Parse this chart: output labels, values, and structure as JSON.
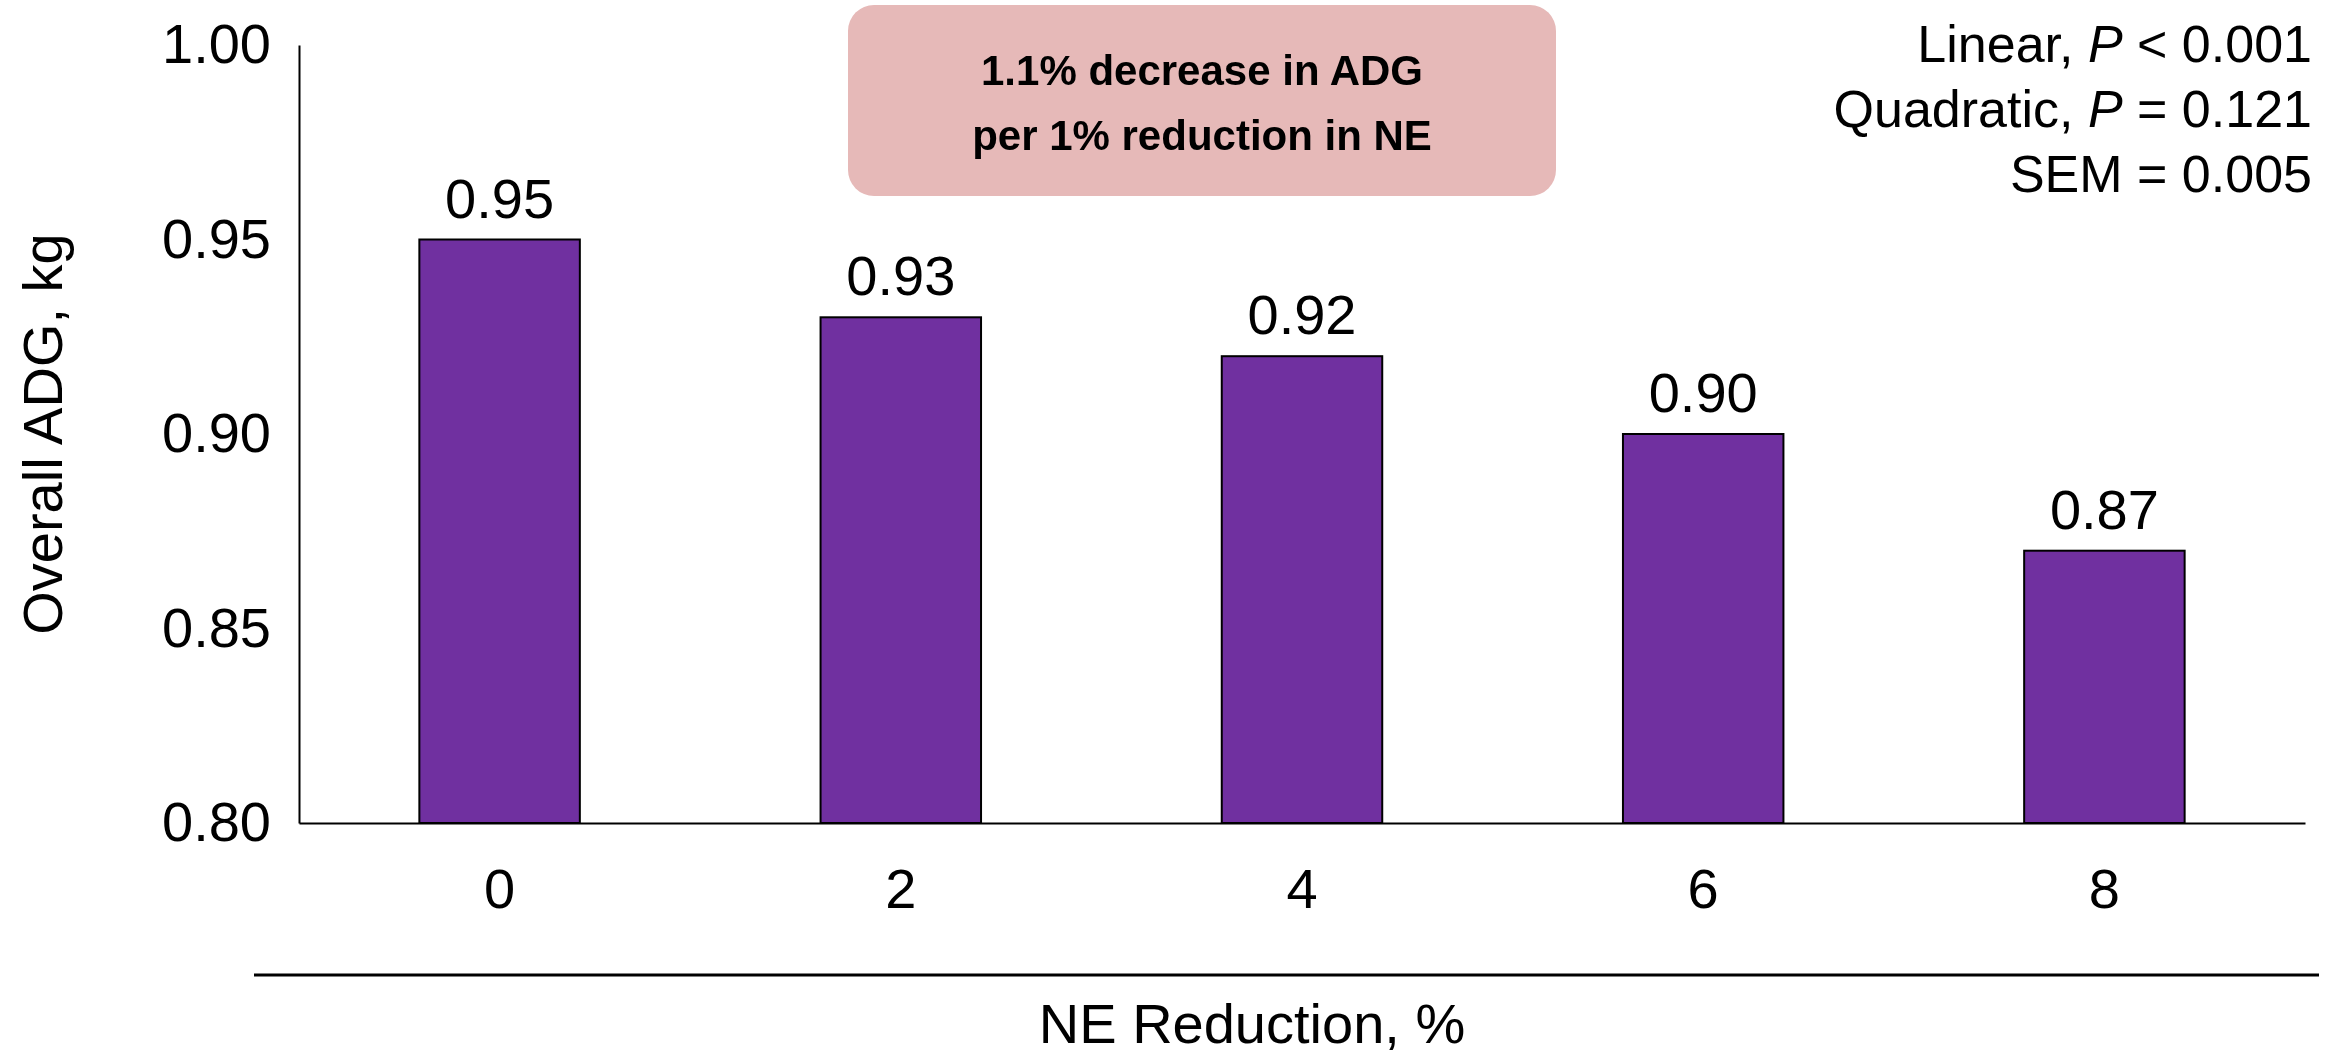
{
  "chart_data": {
    "type": "bar",
    "xlabel": "NE Reduction, %",
    "ylabel": "Overall ADG, kg",
    "categories": [
      "0",
      "2",
      "4",
      "6",
      "8"
    ],
    "values": [
      0.95,
      0.93,
      0.92,
      0.9,
      0.87
    ],
    "color": "#7030a0",
    "ylim": [
      0.8,
      1.0
    ],
    "yticks": [
      {
        "value": 0.8,
        "label": "0.80"
      },
      {
        "value": 0.85,
        "label": "0.85"
      },
      {
        "value": 0.9,
        "label": "0.90"
      },
      {
        "value": 0.95,
        "label": "0.95"
      },
      {
        "value": 1,
        "label": "1.00"
      }
    ],
    "grid": false,
    "value_labels": [
      "0.95",
      "0.93",
      "0.92",
      "0.90",
      "0.87"
    ],
    "annotations": [
      "1.1% decrease in ADG per 1% reduction in NE",
      "Linear, P < 0.001",
      "Quadratic, P = 0.121",
      "SEM = 0.005"
    ]
  }
}
